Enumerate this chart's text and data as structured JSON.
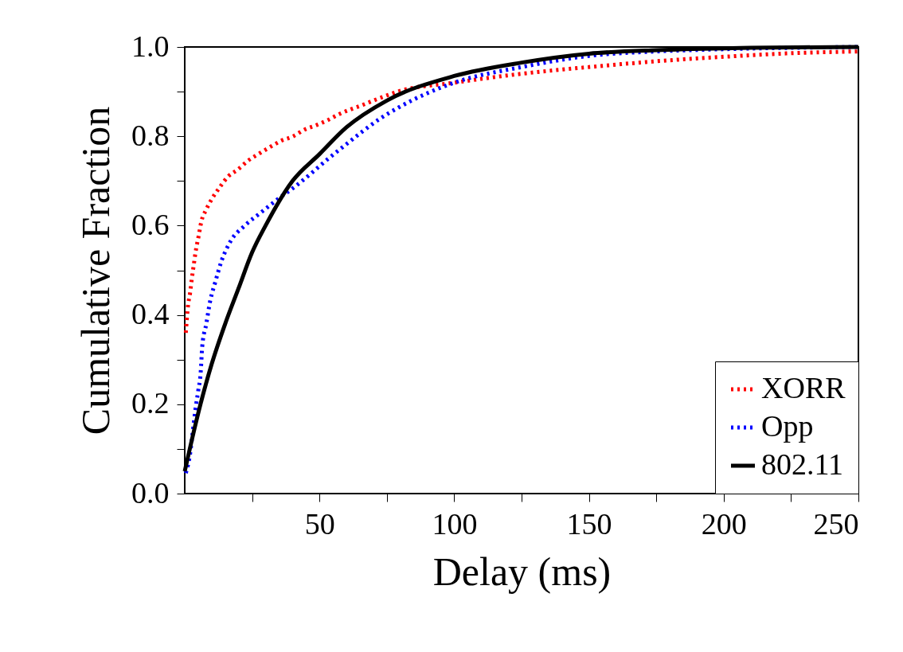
{
  "chart_data": {
    "type": "line",
    "xlabel": "Delay (ms)",
    "ylabel": "Cumulative Fraction",
    "xlim": [
      0,
      250
    ],
    "ylim": [
      0,
      1
    ],
    "xticks": [
      {
        "value": 25,
        "label": null
      },
      50,
      {
        "value": 75,
        "label": null
      },
      100,
      {
        "value": 125,
        "label": null
      },
      150,
      {
        "value": 175,
        "label": null
      },
      200,
      {
        "value": 225,
        "label": null
      },
      250
    ],
    "yticks": [
      {
        "value": 0,
        "label": "0.0"
      },
      {
        "value": 0.1,
        "label": null
      },
      {
        "value": 0.2,
        "label": "0.2"
      },
      {
        "value": 0.3,
        "label": null
      },
      {
        "value": 0.4,
        "label": "0.4"
      },
      {
        "value": 0.5,
        "label": null
      },
      {
        "value": 0.6,
        "label": "0.6"
      },
      {
        "value": 0.7,
        "label": null
      },
      {
        "value": 0.8,
        "label": "0.8"
      },
      {
        "value": 0.9,
        "label": null
      },
      {
        "value": 1,
        "label": "1.0"
      }
    ],
    "grid": false,
    "legend": "bottom right",
    "marker": "none",
    "series": [
      {
        "name": "XORR",
        "color": "#ff0000",
        "line_style": "dotted",
        "x": [
          0.4,
          1.2,
          2,
          2.6,
          3.3,
          4,
          5.1,
          6.2,
          7.9,
          10.1,
          12.9,
          16.1,
          19.6,
          23.4,
          27.3,
          31.4,
          35.8,
          40.2,
          44.5,
          48.9,
          53,
          57.4,
          61.4,
          66,
          70,
          74.4,
          79,
          100,
          125,
          150,
          175,
          200,
          225,
          250
        ],
        "values": [
          0.36,
          0.42,
          0.45,
          0.48,
          0.51,
          0.54,
          0.575,
          0.61,
          0.635,
          0.66,
          0.685,
          0.71,
          0.725,
          0.745,
          0.76,
          0.775,
          0.79,
          0.8,
          0.815,
          0.825,
          0.836,
          0.85,
          0.86,
          0.87,
          0.88,
          0.89,
          0.9,
          0.92,
          0.94,
          0.955,
          0.968,
          0.978,
          0.986,
          0.99
        ]
      },
      {
        "name": "Opp",
        "color": "#0000ff",
        "line_style": "dotted",
        "x": [
          0.4,
          2,
          3,
          4,
          5,
          5.9,
          6.5,
          8,
          9.4,
          11.4,
          13.6,
          17,
          22.3,
          28.4,
          34.7,
          41.5,
          47.5,
          53.3,
          59.5,
          65.8,
          72.6,
          79.5,
          100,
          125,
          150,
          175,
          200,
          250
        ],
        "values": [
          0.046,
          0.09,
          0.14,
          0.19,
          0.23,
          0.27,
          0.33,
          0.38,
          0.43,
          0.475,
          0.52,
          0.565,
          0.6,
          0.63,
          0.66,
          0.69,
          0.72,
          0.75,
          0.78,
          0.81,
          0.84,
          0.865,
          0.92,
          0.955,
          0.98,
          0.99,
          0.995,
          1.0
        ]
      },
      {
        "name": "802.11",
        "color": "#000000",
        "line_style": "solid",
        "x": [
          0,
          5,
          10,
          15,
          20,
          25,
          30,
          40,
          50,
          60,
          75,
          100,
          125,
          150,
          175,
          200,
          250
        ],
        "values": [
          0.05,
          0.18,
          0.29,
          0.38,
          0.46,
          0.54,
          0.6,
          0.7,
          0.76,
          0.82,
          0.88,
          0.935,
          0.965,
          0.985,
          0.993,
          0.997,
          1.0
        ]
      }
    ]
  }
}
